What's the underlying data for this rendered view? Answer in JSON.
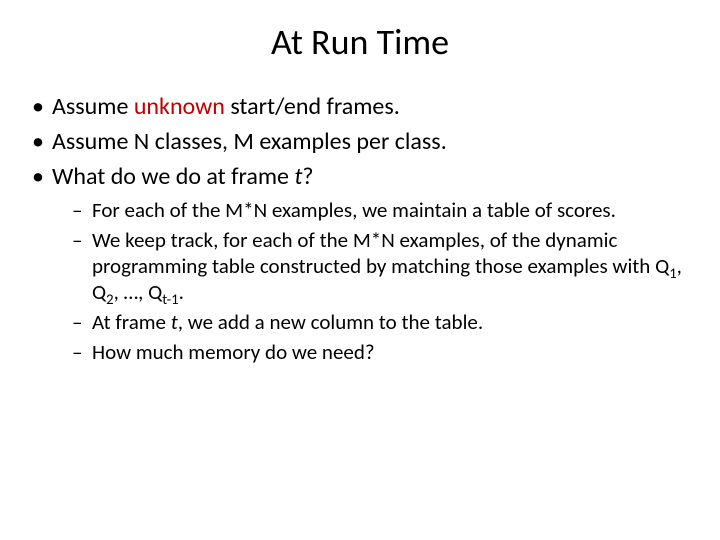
{
  "title": {
    "text": "At Run Time",
    "fontsize": 36,
    "color": "#000000"
  },
  "colors": {
    "accent_red": "#c00000",
    "text": "#000000",
    "background": "#ffffff"
  },
  "fonts": {
    "family": "Calibri",
    "level1_size": 24,
    "level2_size": 21
  },
  "bullets": {
    "b1_a": "Assume ",
    "b1_unknown": "unknown",
    "b1_b": " start/end frames.",
    "b2": "Assume N classes, M examples per class.",
    "b3_a": "What do we do at frame ",
    "b3_t": "t",
    "b3_b": "?",
    "sub": {
      "s1": "For each of the M*N examples, we maintain a table of scores.",
      "s2_a": "We keep track, for each of the M*N examples, of the dynamic programming table constructed by matching those examples with Q",
      "s2_sub1": "1",
      "s2_b": ", Q",
      "s2_sub2": "2",
      "s2_c": ", …, Q",
      "s2_sub3": "t-1",
      "s2_d": ".",
      "s3_a": "At frame ",
      "s3_t": "t",
      "s3_b": ", we add a new column to the table.",
      "s4": "How much memory do we need?"
    }
  }
}
